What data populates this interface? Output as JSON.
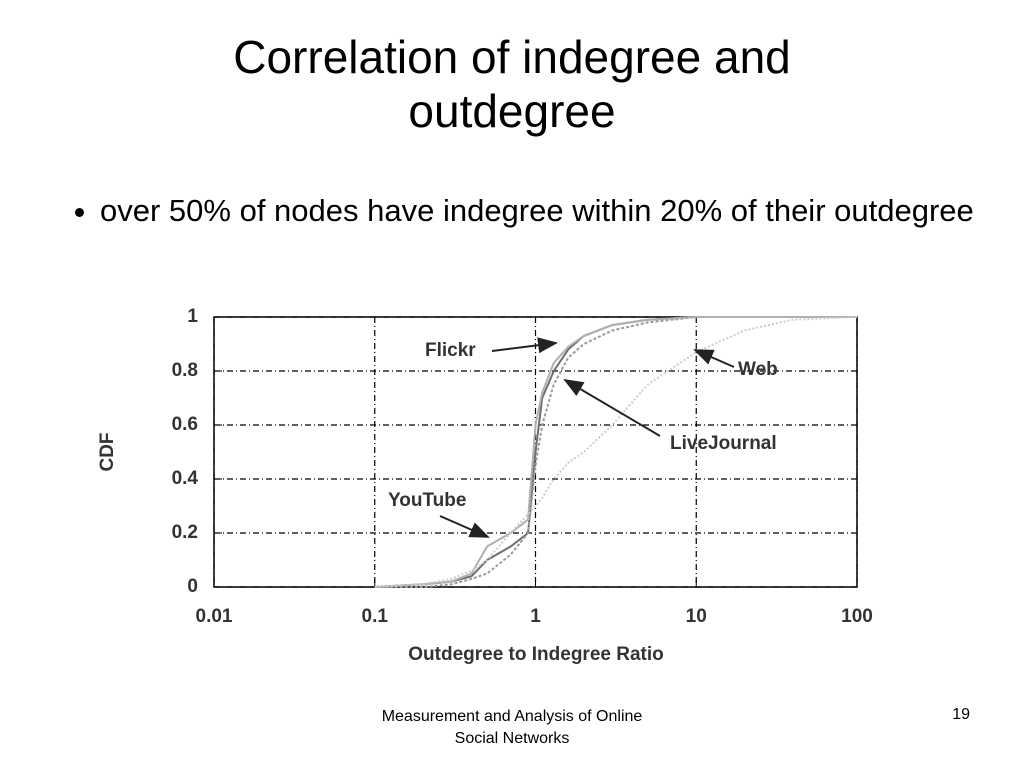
{
  "slide": {
    "title": "Correlation of indegree and outdegree",
    "bullets": [
      "over 50% of nodes have indegree within 20% of their outdegree"
    ],
    "footer": "Measurement and Analysis of Online Social Networks",
    "page_number": "19"
  },
  "chart_data": {
    "type": "line",
    "x_label": "Outdegree to Indegree Ratio",
    "y_label": "CDF",
    "xscale": "log",
    "grid": true,
    "xlim": [
      0.01,
      100
    ],
    "xticks": [
      0.01,
      0.1,
      1,
      10,
      100
    ],
    "ylim": [
      0,
      1
    ],
    "yticks": [
      0,
      0.2,
      0.4,
      0.6,
      0.8,
      1
    ],
    "x": [
      0.1,
      0.2,
      0.3,
      0.4,
      0.5,
      0.7,
      0.9,
      1,
      1.1,
      1.3,
      1.6,
      2,
      3,
      5,
      10,
      20,
      40,
      100
    ],
    "series": [
      {
        "name": "Flickr",
        "color": "#6e6e6e",
        "dash": "none",
        "values": [
          0,
          0.01,
          0.02,
          0.04,
          0.1,
          0.15,
          0.2,
          0.5,
          0.7,
          0.8,
          0.88,
          0.93,
          0.97,
          0.99,
          1,
          1,
          1,
          1
        ]
      },
      {
        "name": "LiveJournal",
        "color": "#9a9a9a",
        "dash": "3 2",
        "values": [
          0,
          0,
          0.01,
          0.03,
          0.05,
          0.12,
          0.2,
          0.45,
          0.6,
          0.75,
          0.85,
          0.9,
          0.95,
          0.98,
          1,
          1,
          1,
          1
        ]
      },
      {
        "name": "YouTube",
        "color": "#b0b0b0",
        "dash": "none",
        "values": [
          0,
          0.01,
          0.02,
          0.05,
          0.15,
          0.2,
          0.25,
          0.6,
          0.72,
          0.83,
          0.89,
          0.93,
          0.97,
          0.99,
          1,
          1,
          1,
          1
        ]
      },
      {
        "name": "Web",
        "color": "#cccccc",
        "dash": "2 2",
        "values": [
          0,
          0.01,
          0.03,
          0.06,
          0.1,
          0.2,
          0.27,
          0.3,
          0.33,
          0.4,
          0.46,
          0.5,
          0.6,
          0.75,
          0.87,
          0.95,
          0.99,
          1
        ]
      }
    ]
  }
}
